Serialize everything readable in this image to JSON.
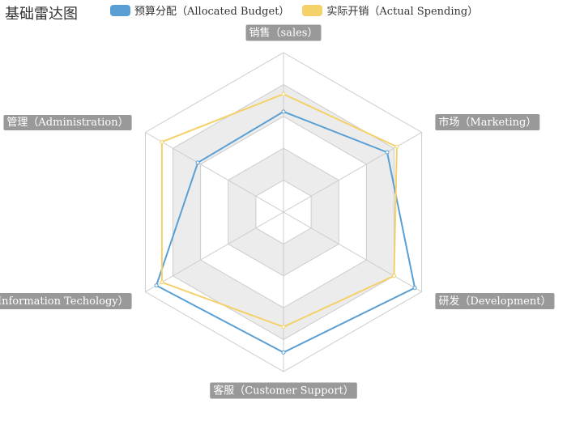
{
  "title": "基础雷达图",
  "chart_data": {
    "type": "radar",
    "title": "基础雷达图",
    "legend_position": "top",
    "indicators": [
      "销售（sales）",
      "市场（Marketing）",
      "研发（Development）",
      "客服（Customer Support）",
      "信息技术（Information Techology）",
      "管理（Administration）"
    ],
    "max": 1,
    "series": [
      {
        "name": "预算分配（Allocated Budget）",
        "color": "#5a9fd4",
        "values": [
          0.63,
          0.75,
          0.95,
          0.88,
          0.92,
          0.62
        ]
      },
      {
        "name": "实际开销（Actual Spending）",
        "color": "#f5d16a",
        "values": [
          0.74,
          0.82,
          0.8,
          0.72,
          0.88,
          0.88
        ]
      }
    ],
    "split_number": 5,
    "split_area_colors": [
      "#ffffff",
      "#ececec"
    ],
    "axis_label_background": "#999999"
  }
}
